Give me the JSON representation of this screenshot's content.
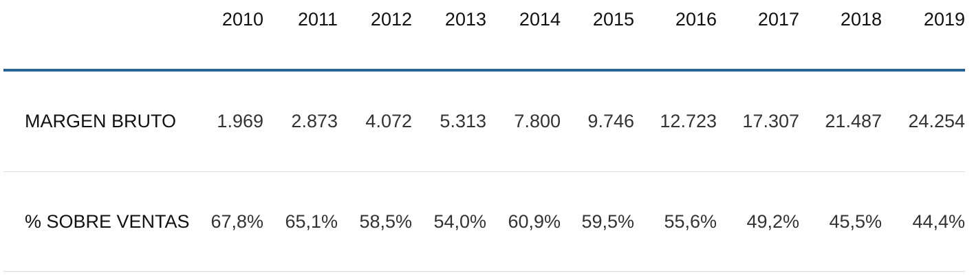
{
  "table": {
    "accent_color": "#2a6496",
    "years": [
      "2010",
      "2011",
      "2012",
      "2013",
      "2014",
      "2015",
      "2016",
      "2017",
      "2018",
      "2019"
    ],
    "rows": [
      {
        "label": "MARGEN BRUTO",
        "values": [
          "1.969",
          "2.873",
          "4.072",
          "5.313",
          "7.800",
          "9.746",
          "12.723",
          "17.307",
          "21.487",
          "24.254"
        ]
      },
      {
        "label": "% SOBRE VENTAS",
        "values": [
          "67,8%",
          "65,1%",
          "58,5%",
          "54,0%",
          "60,9%",
          "59,5%",
          "55,6%",
          "49,2%",
          "45,5%",
          "44,4%"
        ]
      }
    ]
  }
}
